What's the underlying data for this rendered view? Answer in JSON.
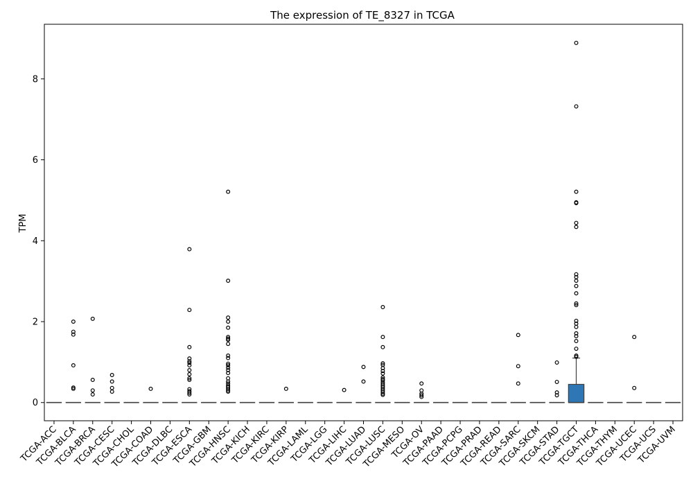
{
  "chart_data": {
    "type": "box",
    "title": "The expression of TE_8327 in TCGA",
    "xlabel": "",
    "ylabel": "TPM",
    "ylim": [
      -0.45,
      9.35
    ],
    "yticks": [
      0,
      2,
      4,
      6,
      8
    ],
    "grid": false,
    "box_color": "#2f77b4",
    "categories": [
      "TCGA-ACC",
      "TCGA-BLCA",
      "TCGA-BRCA",
      "TCGA-CESC",
      "TCGA-CHOL",
      "TCGA-COAD",
      "TCGA-DLBC",
      "TCGA-ESCA",
      "TCGA-GBM",
      "TCGA-HNSC",
      "TCGA-KICH",
      "TCGA-KIRC",
      "TCGA-KIRP",
      "TCGA-LAML",
      "TCGA-LGG",
      "TCGA-LIHC",
      "TCGA-LUAD",
      "TCGA-LUSC",
      "TCGA-MESO",
      "TCGA-OV",
      "TCGA-PAAD",
      "TCGA-PCPG",
      "TCGA-PRAD",
      "TCGA-READ",
      "TCGA-SARC",
      "TCGA-SKCM",
      "TCGA-STAD",
      "TCGA-TGCT",
      "TCGA-THCA",
      "TCGA-THYM",
      "TCGA-UCEC",
      "TCGA-UCS",
      "TCGA-UVM"
    ],
    "boxes": [
      {
        "q1": 0,
        "median": 0,
        "q3": 0,
        "whisker_low": 0,
        "whisker_high": 0,
        "outliers": []
      },
      {
        "q1": 0,
        "median": 0,
        "q3": 0,
        "whisker_low": 0,
        "whisker_high": 0,
        "outliers": [
          2.0,
          1.75,
          1.68,
          0.92,
          0.37,
          0.34
        ]
      },
      {
        "q1": 0,
        "median": 0,
        "q3": 0,
        "whisker_low": 0,
        "whisker_high": 0,
        "outliers": [
          2.07,
          0.56,
          0.3,
          0.2
        ]
      },
      {
        "q1": 0,
        "median": 0,
        "q3": 0,
        "whisker_low": 0,
        "whisker_high": 0,
        "outliers": [
          0.68,
          0.52,
          0.36,
          0.27
        ]
      },
      {
        "q1": 0,
        "median": 0,
        "q3": 0,
        "whisker_low": 0,
        "whisker_high": 0,
        "outliers": []
      },
      {
        "q1": 0,
        "median": 0,
        "q3": 0,
        "whisker_low": 0,
        "whisker_high": 0,
        "outliers": [
          0.34
        ]
      },
      {
        "q1": 0,
        "median": 0,
        "q3": 0,
        "whisker_low": 0,
        "whisker_high": 0,
        "outliers": []
      },
      {
        "q1": 0,
        "median": 0,
        "q3": 0,
        "whisker_low": 0,
        "whisker_high": 0,
        "outliers": [
          3.79,
          2.29,
          1.37,
          1.09,
          1.02,
          0.98,
          0.92,
          0.8,
          0.7,
          0.6,
          0.56,
          0.33,
          0.28,
          0.24,
          0.2
        ]
      },
      {
        "q1": 0,
        "median": 0,
        "q3": 0,
        "whisker_low": 0,
        "whisker_high": 0,
        "outliers": []
      },
      {
        "q1": 0,
        "median": 0,
        "q3": 0,
        "whisker_low": 0,
        "whisker_high": 0,
        "outliers": [
          5.21,
          3.01,
          2.1,
          2.0,
          1.85,
          1.62,
          1.58,
          1.55,
          1.45,
          1.16,
          1.1,
          0.96,
          0.92,
          0.86,
          0.8,
          0.73,
          0.6,
          0.52,
          0.47,
          0.42,
          0.38,
          0.34,
          0.3,
          0.27
        ]
      },
      {
        "q1": 0,
        "median": 0,
        "q3": 0,
        "whisker_low": 0,
        "whisker_high": 0,
        "outliers": []
      },
      {
        "q1": 0,
        "median": 0,
        "q3": 0,
        "whisker_low": 0,
        "whisker_high": 0,
        "outliers": []
      },
      {
        "q1": 0,
        "median": 0,
        "q3": 0,
        "whisker_low": 0,
        "whisker_high": 0,
        "outliers": [
          0.34
        ]
      },
      {
        "q1": 0,
        "median": 0,
        "q3": 0,
        "whisker_low": 0,
        "whisker_high": 0,
        "outliers": []
      },
      {
        "q1": 0,
        "median": 0,
        "q3": 0,
        "whisker_low": 0,
        "whisker_high": 0,
        "outliers": []
      },
      {
        "q1": 0,
        "median": 0,
        "q3": 0,
        "whisker_low": 0,
        "whisker_high": 0,
        "outliers": [
          0.31
        ]
      },
      {
        "q1": 0,
        "median": 0,
        "q3": 0,
        "whisker_low": 0,
        "whisker_high": 0,
        "outliers": [
          0.88,
          0.52
        ]
      },
      {
        "q1": 0,
        "median": 0,
        "q3": 0,
        "whisker_low": 0,
        "whisker_high": 0,
        "outliers": [
          2.36,
          1.62,
          1.37,
          0.97,
          0.93,
          0.85,
          0.78,
          0.72,
          0.62,
          0.58,
          0.55,
          0.5,
          0.46,
          0.42,
          0.38,
          0.34,
          0.3,
          0.26,
          0.22,
          0.19
        ]
      },
      {
        "q1": 0,
        "median": 0,
        "q3": 0,
        "whisker_low": 0,
        "whisker_high": 0,
        "outliers": []
      },
      {
        "q1": 0,
        "median": 0,
        "q3": 0,
        "whisker_low": 0,
        "whisker_high": 0,
        "outliers": [
          0.47,
          0.3,
          0.22,
          0.18,
          0.14
        ]
      },
      {
        "q1": 0,
        "median": 0,
        "q3": 0,
        "whisker_low": 0,
        "whisker_high": 0,
        "outliers": []
      },
      {
        "q1": 0,
        "median": 0,
        "q3": 0,
        "whisker_low": 0,
        "whisker_high": 0,
        "outliers": []
      },
      {
        "q1": 0,
        "median": 0,
        "q3": 0,
        "whisker_low": 0,
        "whisker_high": 0,
        "outliers": []
      },
      {
        "q1": 0,
        "median": 0,
        "q3": 0,
        "whisker_low": 0,
        "whisker_high": 0,
        "outliers": []
      },
      {
        "q1": 0,
        "median": 0,
        "q3": 0,
        "whisker_low": 0,
        "whisker_high": 0,
        "outliers": [
          1.67,
          0.9,
          0.47
        ]
      },
      {
        "q1": 0,
        "median": 0,
        "q3": 0,
        "whisker_low": 0,
        "whisker_high": 0,
        "outliers": []
      },
      {
        "q1": 0,
        "median": 0,
        "q3": 0,
        "whisker_low": 0,
        "whisker_high": 0,
        "outliers": [
          0.99,
          0.51,
          0.25,
          0.18
        ]
      },
      {
        "q1": 0,
        "median": 0,
        "q3": 0.45,
        "whisker_low": 0,
        "whisker_high": 1.1,
        "outliers": [
          8.89,
          7.32,
          5.21,
          4.95,
          4.93,
          4.44,
          4.34,
          3.17,
          3.1,
          3.01,
          2.88,
          2.7,
          2.45,
          2.41,
          2.02,
          1.95,
          1.87,
          1.71,
          1.64,
          1.52,
          1.33,
          1.16,
          1.13
        ]
      },
      {
        "q1": 0,
        "median": 0,
        "q3": 0,
        "whisker_low": 0,
        "whisker_high": 0,
        "outliers": []
      },
      {
        "q1": 0,
        "median": 0,
        "q3": 0,
        "whisker_low": 0,
        "whisker_high": 0,
        "outliers": []
      },
      {
        "q1": 0,
        "median": 0,
        "q3": 0,
        "whisker_low": 0,
        "whisker_high": 0,
        "outliers": [
          1.62,
          0.36
        ]
      },
      {
        "q1": 0,
        "median": 0,
        "q3": 0,
        "whisker_low": 0,
        "whisker_high": 0,
        "outliers": []
      },
      {
        "q1": 0,
        "median": 0,
        "q3": 0,
        "whisker_low": 0,
        "whisker_high": 0,
        "outliers": []
      }
    ]
  }
}
